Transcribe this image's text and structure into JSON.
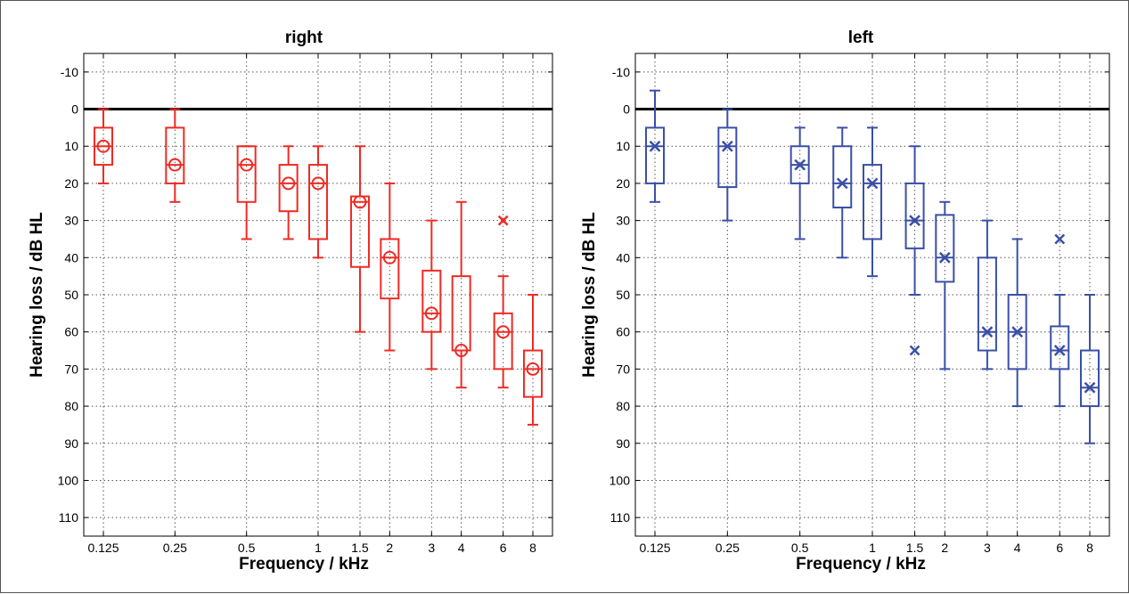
{
  "chart_data": [
    {
      "type": "boxplot",
      "title": "right",
      "xlabel": "Frequency / kHz",
      "ylabel": "Hearing loss / dB HL",
      "ylim": [
        -15,
        115
      ],
      "y_ticks": [
        "-10",
        "0",
        "10",
        "20",
        "30",
        "40",
        "50",
        "60",
        "70",
        "80",
        "90",
        "100",
        "110"
      ],
      "y_inverted": true,
      "x_scale": "log",
      "x_ticks": [
        "0.125",
        "0.25",
        "0.5",
        "1",
        "1.5",
        "2",
        "3",
        "4",
        "6",
        "8"
      ],
      "grid": true,
      "reference_line_y": 0,
      "color": "#ef2b24",
      "median_marker": "circle",
      "outlier_marker": "x",
      "boxes": [
        {
          "freq": 0.125,
          "whisker_low": 0,
          "q1": 5,
          "median": 10,
          "q3": 15,
          "whisker_high": 20,
          "outliers": []
        },
        {
          "freq": 0.25,
          "whisker_low": 0,
          "q1": 5,
          "median": 15,
          "q3": 20,
          "whisker_high": 25,
          "outliers": []
        },
        {
          "freq": 0.5,
          "whisker_low": 10,
          "q1": 10,
          "median": 15,
          "q3": 25,
          "whisker_high": 35,
          "outliers": []
        },
        {
          "freq": 0.75,
          "whisker_low": 10,
          "q1": 15,
          "median": 20,
          "q3": 27.5,
          "whisker_high": 35,
          "outliers": []
        },
        {
          "freq": 1,
          "whisker_low": 10,
          "q1": 15,
          "median": 20,
          "q3": 35,
          "whisker_high": 40,
          "outliers": []
        },
        {
          "freq": 1.5,
          "whisker_low": 10,
          "q1": 23.5,
          "median": 25,
          "q3": 42.5,
          "whisker_high": 60,
          "outliers": []
        },
        {
          "freq": 2,
          "whisker_low": 20,
          "q1": 35,
          "median": 40,
          "q3": 51,
          "whisker_high": 65,
          "outliers": []
        },
        {
          "freq": 3,
          "whisker_low": 30,
          "q1": 43.5,
          "median": 55,
          "q3": 60,
          "whisker_high": 70,
          "outliers": []
        },
        {
          "freq": 4,
          "whisker_low": 25,
          "q1": 45,
          "median": 65,
          "q3": 65,
          "whisker_high": 75,
          "outliers": []
        },
        {
          "freq": 6,
          "whisker_low": 45,
          "q1": 55,
          "median": 60,
          "q3": 70,
          "whisker_high": 75,
          "outliers": [
            30
          ]
        },
        {
          "freq": 8,
          "whisker_low": 50,
          "q1": 65,
          "median": 70,
          "q3": 77.5,
          "whisker_high": 85,
          "outliers": []
        }
      ]
    },
    {
      "type": "boxplot",
      "title": "left",
      "xlabel": "Frequency / kHz",
      "ylabel": "Hearing loss / dB HL",
      "ylim": [
        -15,
        115
      ],
      "y_ticks": [
        "-10",
        "0",
        "10",
        "20",
        "30",
        "40",
        "50",
        "60",
        "70",
        "80",
        "90",
        "100",
        "110"
      ],
      "y_inverted": true,
      "x_scale": "log",
      "x_ticks": [
        "0.125",
        "0.25",
        "0.5",
        "1",
        "1.5",
        "2",
        "3",
        "4",
        "6",
        "8"
      ],
      "grid": true,
      "reference_line_y": 0,
      "color": "#3a4fa6",
      "median_marker": "x",
      "outlier_marker": "x",
      "boxes": [
        {
          "freq": 0.125,
          "whisker_low": -5,
          "q1": 5,
          "median": 10,
          "q3": 20,
          "whisker_high": 25,
          "outliers": []
        },
        {
          "freq": 0.25,
          "whisker_low": 0,
          "q1": 5,
          "median": 10,
          "q3": 21,
          "whisker_high": 30,
          "outliers": []
        },
        {
          "freq": 0.5,
          "whisker_low": 5,
          "q1": 10,
          "median": 15,
          "q3": 20,
          "whisker_high": 35,
          "outliers": []
        },
        {
          "freq": 0.75,
          "whisker_low": 5,
          "q1": 10,
          "median": 20,
          "q3": 26.5,
          "whisker_high": 40,
          "outliers": []
        },
        {
          "freq": 1,
          "whisker_low": 5,
          "q1": 15,
          "median": 20,
          "q3": 35,
          "whisker_high": 45,
          "outliers": []
        },
        {
          "freq": 1.5,
          "whisker_low": 10,
          "q1": 20,
          "median": 30,
          "q3": 37.5,
          "whisker_high": 50,
          "outliers": [
            65
          ]
        },
        {
          "freq": 2,
          "whisker_low": 25,
          "q1": 28.5,
          "median": 40,
          "q3": 46.5,
          "whisker_high": 70,
          "outliers": []
        },
        {
          "freq": 3,
          "whisker_low": 30,
          "q1": 40,
          "median": 60,
          "q3": 65,
          "whisker_high": 70,
          "outliers": []
        },
        {
          "freq": 4,
          "whisker_low": 35,
          "q1": 50,
          "median": 60,
          "q3": 70,
          "whisker_high": 80,
          "outliers": []
        },
        {
          "freq": 6,
          "whisker_low": 50,
          "q1": 58.5,
          "median": 65,
          "q3": 70,
          "whisker_high": 80,
          "outliers": [
            35
          ]
        },
        {
          "freq": 8,
          "whisker_low": 50,
          "q1": 65,
          "median": 75,
          "q3": 80,
          "whisker_high": 90,
          "outliers": []
        }
      ]
    }
  ]
}
